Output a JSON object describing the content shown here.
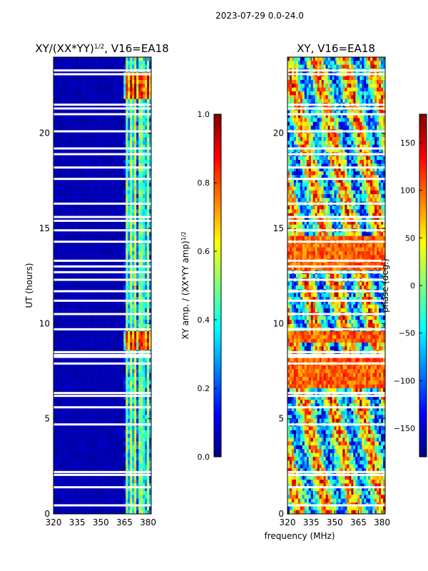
{
  "suptitle": "2023-07-29 0.0-24.0",
  "colors": {
    "jet": [
      "#00007f",
      "#0000ff",
      "#007fff",
      "#00ffff",
      "#7fff7f",
      "#ffff00",
      "#ff7f00",
      "#ff0000",
      "#7f0000"
    ],
    "gap": "#ffffff",
    "axis": "#000000"
  },
  "chart_data": [
    {
      "id": "amp",
      "type": "heatmap",
      "title_main": "XY/(XX*YY)",
      "title_sup": "1/2",
      "title_rest": ", V16=EA18",
      "xlabel": "",
      "ylabel": "UT (hours)",
      "xlim": [
        320,
        382
      ],
      "ylim": [
        0,
        24
      ],
      "xticks": [
        320,
        335,
        350,
        365,
        380
      ],
      "yticks": [
        0,
        5,
        10,
        15,
        20
      ],
      "colorbar": {
        "label": "XY amp. / (XX*YY amp)",
        "label_sup": "1/2",
        "range": [
          0.0,
          1.0
        ],
        "ticks": [
          "0.0",
          "0.2",
          "0.4",
          "0.6",
          "0.8",
          "1.0"
        ],
        "tick_values": [
          0.0,
          0.2,
          0.4,
          0.6,
          0.8,
          1.0
        ]
      },
      "description_free": true,
      "low_band_value": 0.03,
      "active_band_mhz": [
        364,
        382
      ],
      "channel_profile": [
        0.08,
        0.5,
        0.3,
        0.55,
        0.35,
        0.6,
        0.2,
        0.5,
        0.4,
        0.3,
        0.55,
        0.25
      ],
      "bright_rows_hours": [
        [
          8.7,
          9.6
        ],
        [
          21.8,
          23.2
        ]
      ],
      "gaps_hours": [
        0.45,
        1.4,
        2.05,
        2.2,
        4.7,
        5.6,
        6.2,
        6.35,
        7.9,
        8.25,
        8.35,
        8.5,
        9.7,
        10.5,
        11.2,
        11.7,
        12.3,
        12.7,
        13.0,
        13.3,
        14.3,
        14.9,
        15.4,
        15.6,
        16.3,
        17.6,
        18.2,
        18.9,
        19.2,
        20.1,
        21.0,
        21.3,
        21.5,
        23.1,
        23.3
      ]
    },
    {
      "id": "phase",
      "type": "heatmap",
      "title_main": "XY, V16=EA18",
      "xlabel": "frequency (MHz)",
      "ylabel": "",
      "xlim": [
        320,
        382
      ],
      "ylim": [
        0,
        24
      ],
      "xticks": [
        320,
        335,
        350,
        365,
        380
      ],
      "yticks": [
        0,
        5,
        10,
        15,
        20
      ],
      "colorbar": {
        "label": "phase (deg.)",
        "range": [
          -180,
          180
        ],
        "ticks": [
          "−150",
          "−100",
          "−50",
          "0",
          "50",
          "100",
          "150"
        ],
        "tick_values": [
          -150,
          -100,
          -50,
          0,
          50,
          100,
          150
        ]
      },
      "warm_band_hours": [
        [
          12.8,
          14.5
        ],
        [
          6.6,
          8.2
        ],
        [
          9.0,
          9.6
        ]
      ],
      "gaps_hours": [
        0.45,
        1.4,
        2.05,
        2.2,
        4.7,
        5.6,
        6.2,
        6.35,
        7.9,
        8.25,
        8.35,
        8.5,
        9.7,
        10.5,
        11.2,
        11.7,
        12.3,
        12.7,
        13.0,
        13.3,
        14.3,
        14.9,
        15.4,
        15.6,
        16.3,
        17.6,
        18.2,
        18.9,
        19.2,
        20.1,
        21.0,
        21.3,
        21.5,
        23.1,
        23.3
      ]
    }
  ]
}
